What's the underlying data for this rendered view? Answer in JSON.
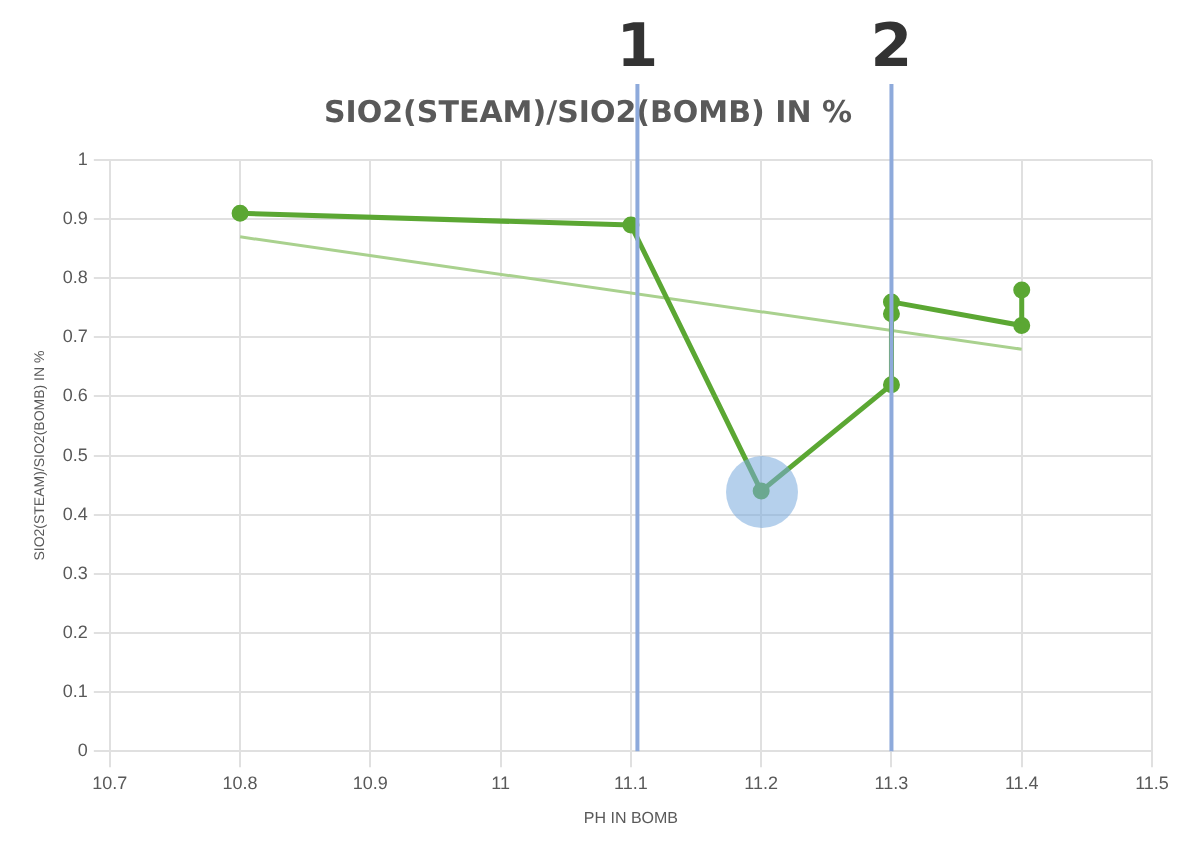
{
  "chart_data": {
    "type": "line",
    "title": "SIO2(STEAM)/SIO2(BOMB) IN %",
    "xlabel": "PH IN BOMB",
    "ylabel": "SIO2(STEAM)/SIO2(BOMB) IN %",
    "xlim": [
      10.7,
      11.5
    ],
    "xticks": [
      10.7,
      10.8,
      10.9,
      11,
      11.1,
      11.2,
      11.3,
      11.4,
      11.5
    ],
    "ylim": [
      0,
      1
    ],
    "yticks": [
      0,
      0.1,
      0.2,
      0.3,
      0.4,
      0.5,
      0.6,
      0.7,
      0.8,
      0.9,
      1
    ],
    "grid": true,
    "legend": false,
    "series": [
      {
        "color": "#5ba733",
        "marker": "circle",
        "x": [
          10.8,
          11.1,
          11.2,
          11.3,
          11.3,
          11.4,
          11.4
        ],
        "values": [
          0.91,
          0.89,
          0.44,
          0.62,
          0.76,
          0.72,
          0.78
        ]
      },
      {
        "type": "scatter",
        "color": "#5ba733",
        "marker": "circle",
        "x": [
          11.3
        ],
        "values": [
          0.74
        ]
      },
      {
        "color": "#a9d18e",
        "marker": "none",
        "x": [
          10.8,
          11.4
        ],
        "values": [
          0.87,
          0.68
        ]
      }
    ],
    "ref_lines": [
      {
        "axis": "x",
        "value": 11.105,
        "color": "#8eaadb"
      },
      {
        "axis": "x",
        "value": 11.3,
        "color": "#8eaadb"
      }
    ],
    "annotations": [
      "1",
      "2"
    ]
  }
}
